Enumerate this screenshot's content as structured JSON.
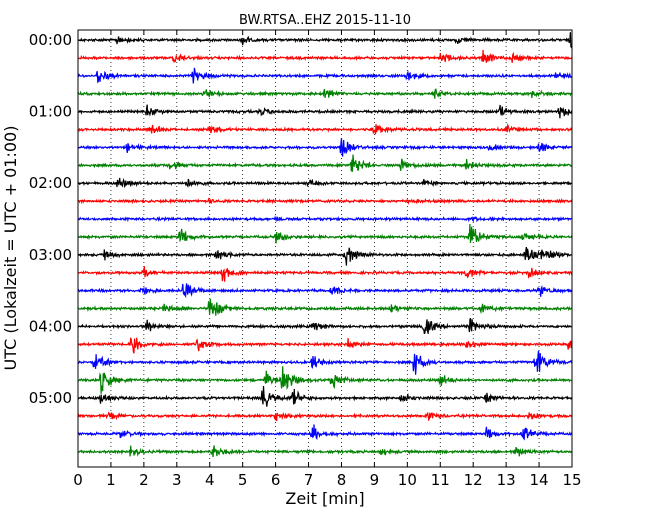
{
  "chart_data": {
    "type": "line",
    "title": "BW.RTSA..EHZ 2015-11-10",
    "xlabel": "Zeit  [min]",
    "ylabel": "UTC (Lokalzeit = UTC + 01:00)",
    "xlim": [
      0,
      15
    ],
    "x_ticks": [
      "0",
      "1",
      "2",
      "3",
      "4",
      "5",
      "6",
      "7",
      "8",
      "9",
      "10",
      "11",
      "12",
      "13",
      "14",
      "15"
    ],
    "y_ticks": [
      {
        "label": "00:00",
        "trace": 0
      },
      {
        "label": "01:00",
        "trace": 4
      },
      {
        "label": "02:00",
        "trace": 8
      },
      {
        "label": "03:00",
        "trace": 12
      },
      {
        "label": "04:00",
        "trace": 16
      },
      {
        "label": "05:00",
        "trace": 20
      }
    ],
    "trace_interval_min": 15,
    "trace_count": 24,
    "colors": [
      "#000000",
      "#ff0000",
      "#0000ff",
      "#008000"
    ],
    "grid": "vertical-dotted",
    "events": [
      [
        {
          "t": 1.2,
          "a": 0.5
        },
        {
          "t": 5.0,
          "a": 0.4
        },
        {
          "t": 11.5,
          "a": 0.35
        },
        {
          "t": 14.95,
          "a": 1.0
        }
      ],
      [
        {
          "t": 2.9,
          "a": 0.6
        },
        {
          "t": 11.0,
          "a": 0.6
        },
        {
          "t": 12.3,
          "a": 0.8
        },
        {
          "t": 13.2,
          "a": 0.5
        }
      ],
      [
        {
          "t": 0.6,
          "a": 0.9
        },
        {
          "t": 3.5,
          "a": 0.9
        },
        {
          "t": 10.0,
          "a": 0.6
        },
        {
          "t": 14.5,
          "a": 0.4
        }
      ],
      [
        {
          "t": 3.8,
          "a": 0.6
        },
        {
          "t": 7.5,
          "a": 0.7
        },
        {
          "t": 10.8,
          "a": 0.5
        },
        {
          "t": 13.8,
          "a": 0.4
        }
      ],
      [
        {
          "t": 2.1,
          "a": 0.6
        },
        {
          "t": 5.5,
          "a": 0.5
        },
        {
          "t": 12.8,
          "a": 0.6
        },
        {
          "t": 14.6,
          "a": 0.9
        }
      ],
      [
        {
          "t": 2.2,
          "a": 0.5
        },
        {
          "t": 4.0,
          "a": 0.4
        },
        {
          "t": 9.0,
          "a": 0.6
        },
        {
          "t": 13.0,
          "a": 0.4
        }
      ],
      [
        {
          "t": 1.5,
          "a": 0.4
        },
        {
          "t": 8.0,
          "a": 1.0
        },
        {
          "t": 12.5,
          "a": 0.4
        },
        {
          "t": 14.0,
          "a": 0.5
        }
      ],
      [
        {
          "t": 2.8,
          "a": 0.5
        },
        {
          "t": 8.3,
          "a": 1.4
        },
        {
          "t": 9.8,
          "a": 0.6
        },
        {
          "t": 11.8,
          "a": 0.5
        }
      ],
      [
        {
          "t": 1.2,
          "a": 0.7
        },
        {
          "t": 3.3,
          "a": 0.4
        },
        {
          "t": 7.0,
          "a": 0.3
        },
        {
          "t": 10.5,
          "a": 0.3
        }
      ],
      [
        {
          "t": 4.0,
          "a": 0.15
        },
        {
          "t": 10.0,
          "a": 0.15
        }
      ],
      [
        {
          "t": 6.0,
          "a": 0.15
        },
        {
          "t": 12.0,
          "a": 0.15
        }
      ],
      [
        {
          "t": 3.1,
          "a": 1.0
        },
        {
          "t": 6.0,
          "a": 0.7
        },
        {
          "t": 11.9,
          "a": 1.5
        },
        {
          "t": 13.5,
          "a": 0.6
        }
      ],
      [
        {
          "t": 0.8,
          "a": 0.5
        },
        {
          "t": 4.2,
          "a": 0.6
        },
        {
          "t": 8.1,
          "a": 1.3
        },
        {
          "t": 13.6,
          "a": 1.2
        },
        {
          "t": 14.1,
          "a": 0.9
        }
      ],
      [
        {
          "t": 2.0,
          "a": 0.5
        },
        {
          "t": 4.4,
          "a": 1.1
        },
        {
          "t": 11.8,
          "a": 0.6
        },
        {
          "t": 13.7,
          "a": 0.5
        }
      ],
      [
        {
          "t": 1.9,
          "a": 0.5
        },
        {
          "t": 3.2,
          "a": 1.0
        },
        {
          "t": 7.7,
          "a": 0.5
        },
        {
          "t": 14.0,
          "a": 0.6
        }
      ],
      [
        {
          "t": 2.6,
          "a": 0.4
        },
        {
          "t": 4.0,
          "a": 1.6
        },
        {
          "t": 9.5,
          "a": 0.4
        },
        {
          "t": 12.2,
          "a": 0.5
        }
      ],
      [
        {
          "t": 2.1,
          "a": 0.6
        },
        {
          "t": 7.1,
          "a": 0.6
        },
        {
          "t": 10.5,
          "a": 1.5
        },
        {
          "t": 11.9,
          "a": 1.1
        }
      ],
      [
        {
          "t": 1.6,
          "a": 1.2
        },
        {
          "t": 3.6,
          "a": 0.8
        },
        {
          "t": 8.2,
          "a": 0.5
        },
        {
          "t": 11.8,
          "a": 0.7
        },
        {
          "t": 14.9,
          "a": 0.9
        }
      ],
      [
        {
          "t": 0.5,
          "a": 1.1
        },
        {
          "t": 7.1,
          "a": 0.7
        },
        {
          "t": 10.2,
          "a": 1.4
        },
        {
          "t": 13.9,
          "a": 1.6
        }
      ],
      [
        {
          "t": 0.7,
          "a": 1.5
        },
        {
          "t": 5.7,
          "a": 1.0
        },
        {
          "t": 6.2,
          "a": 1.6
        },
        {
          "t": 7.7,
          "a": 1.0
        },
        {
          "t": 11.0,
          "a": 0.6
        }
      ],
      [
        {
          "t": 0.7,
          "a": 0.6
        },
        {
          "t": 5.6,
          "a": 1.3
        },
        {
          "t": 6.5,
          "a": 1.0
        },
        {
          "t": 9.8,
          "a": 0.5
        },
        {
          "t": 12.4,
          "a": 0.5
        }
      ],
      [
        {
          "t": 0.9,
          "a": 0.4
        },
        {
          "t": 6.0,
          "a": 0.5
        },
        {
          "t": 10.6,
          "a": 0.4
        },
        {
          "t": 13.7,
          "a": 0.4
        }
      ],
      [
        {
          "t": 1.3,
          "a": 0.5
        },
        {
          "t": 7.1,
          "a": 1.1
        },
        {
          "t": 12.4,
          "a": 0.6
        },
        {
          "t": 13.5,
          "a": 0.9
        }
      ],
      [
        {
          "t": 1.6,
          "a": 0.5
        },
        {
          "t": 4.1,
          "a": 0.8
        },
        {
          "t": 9.2,
          "a": 0.4
        },
        {
          "t": 13.3,
          "a": 0.5
        }
      ]
    ]
  }
}
